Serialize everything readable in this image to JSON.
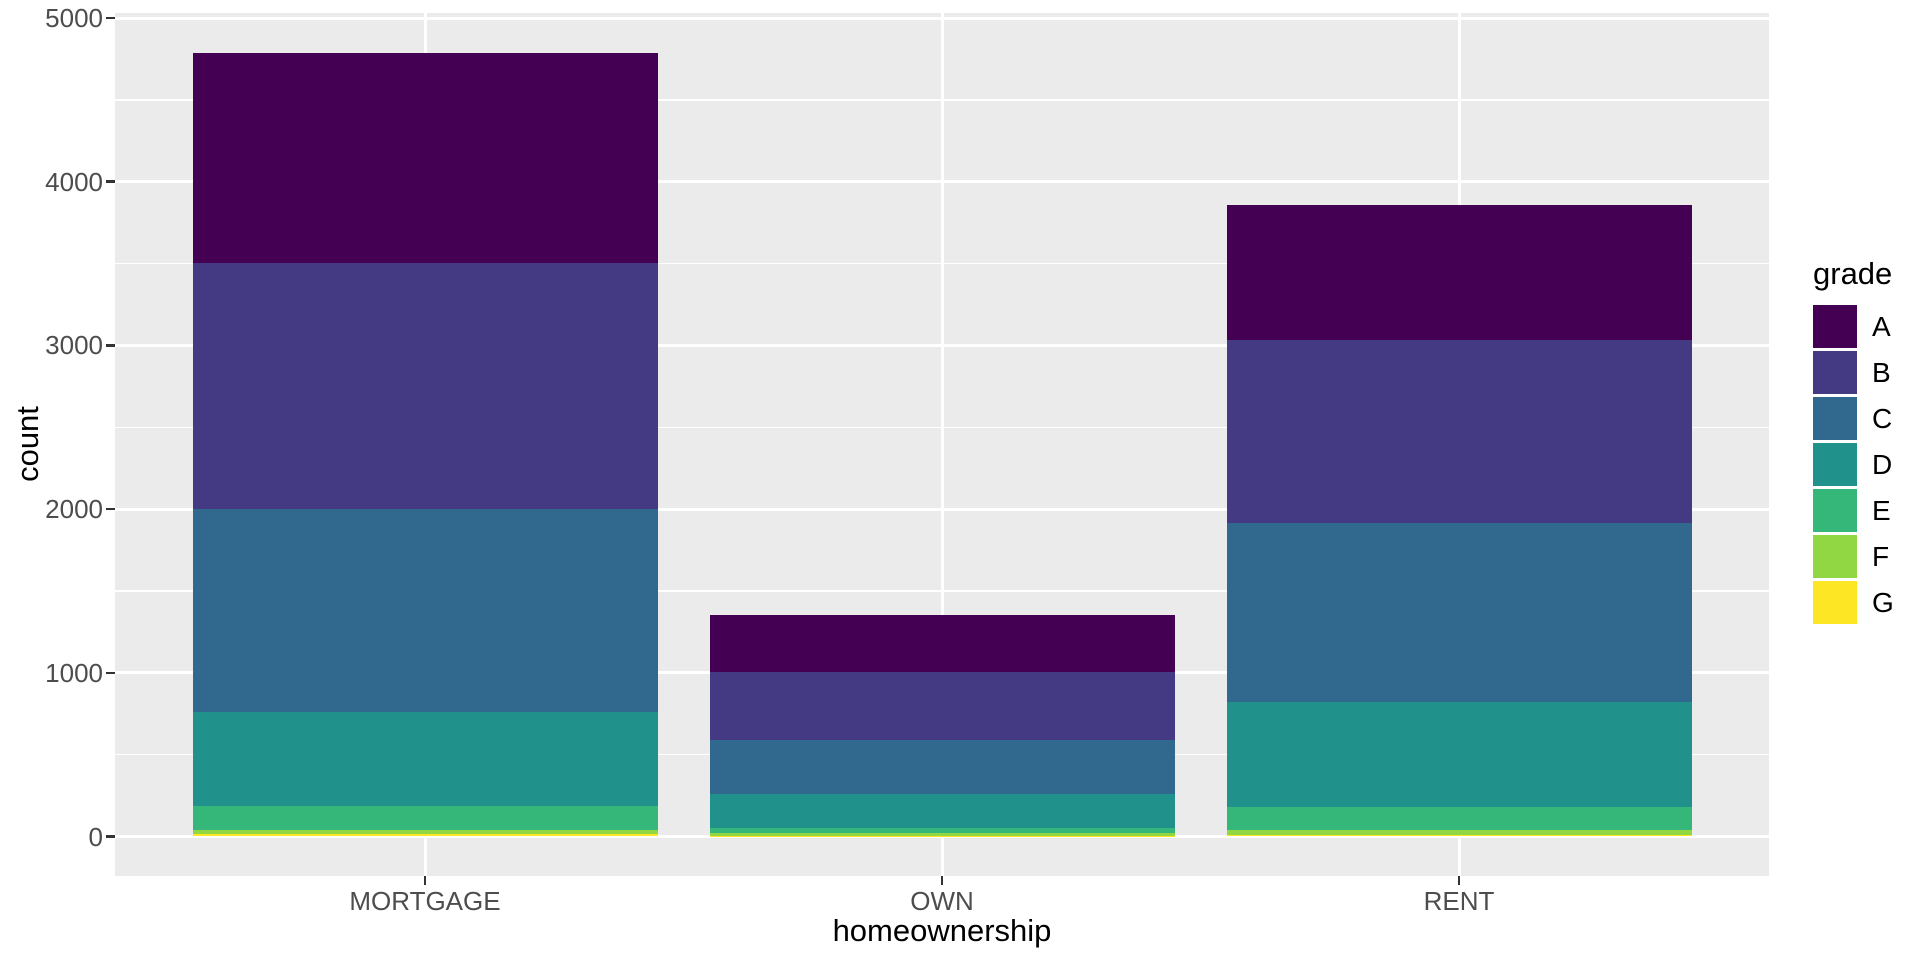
{
  "chart_data": {
    "type": "bar",
    "stacked": true,
    "title": "",
    "xlabel": "homeownership",
    "ylabel": "count",
    "categories": [
      "MORTGAGE",
      "OWN",
      "RENT"
    ],
    "totals": [
      4789,
      1353,
      3858
    ],
    "series": [
      {
        "name": "A",
        "color": "#440154",
        "values": [
          1287,
          346,
          824
        ]
      },
      {
        "name": "B",
        "color": "#443983",
        "values": [
          1501,
          417,
          1120
        ]
      },
      {
        "name": "C",
        "color": "#31688E",
        "values": [
          1239,
          330,
          1094
        ]
      },
      {
        "name": "D",
        "color": "#21918C",
        "values": [
          574,
          206,
          638
        ]
      },
      {
        "name": "E",
        "color": "#35B779",
        "values": [
          151,
          34,
          142
        ]
      },
      {
        "name": "F",
        "color": "#90D743",
        "values": [
          24,
          15,
          30
        ]
      },
      {
        "name": "G",
        "color": "#FDE725",
        "values": [
          13,
          5,
          10
        ]
      }
    ],
    "ylim": [
      0,
      5000
    ],
    "y_major_ticks": [
      0,
      1000,
      2000,
      3000,
      4000,
      5000
    ],
    "y_minor_ticks": [
      500,
      1500,
      2500,
      3500,
      4500
    ],
    "grid": "on",
    "legend_position": "right"
  },
  "legend": {
    "title": "grade",
    "entries": [
      {
        "label": "A",
        "color": "#440154"
      },
      {
        "label": "B",
        "color": "#443983"
      },
      {
        "label": "C",
        "color": "#31688E"
      },
      {
        "label": "D",
        "color": "#21918C"
      },
      {
        "label": "E",
        "color": "#35B779"
      },
      {
        "label": "F",
        "color": "#90D743"
      },
      {
        "label": "G",
        "color": "#FDE725"
      }
    ]
  },
  "colors": {
    "panel_background": "#EBEBEB",
    "gridline": "#FFFFFF",
    "tick_label": "#4D4D4D",
    "tick_mark": "#333333",
    "axis_title": "#000000"
  }
}
